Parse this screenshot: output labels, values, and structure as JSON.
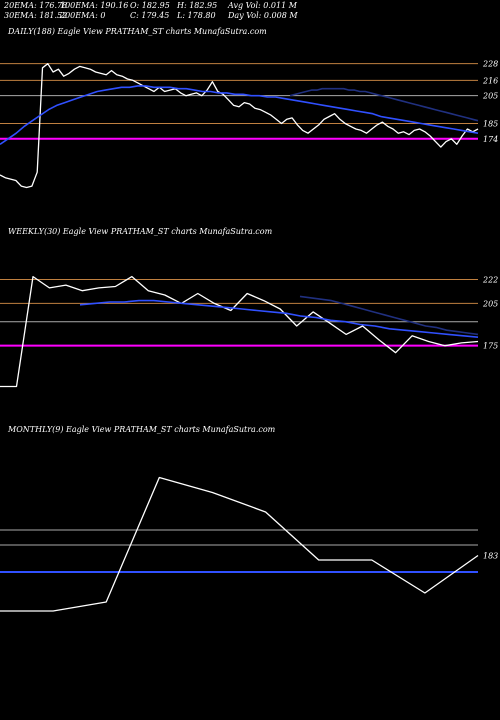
{
  "header": {
    "r1": [
      "20EMA: 176.78",
      "100EMA: 190.16",
      "O: 182.95",
      "H: 182.95",
      "Avg Vol: 0.011 M"
    ],
    "r2": [
      "30EMA: 181.52",
      "200EMA: 0",
      "C: 179.45",
      "L: 178.80",
      "Day Vol: 0.008 M"
    ]
  },
  "captions": {
    "daily": "DAILY(188) Eagle   View  PRATHAM_ST charts MunafaSutra.com",
    "weekly": "WEEKLY(30) Eagle   View  PRATHAM_ST charts MunafaSutra.com",
    "monthly": "MONTHLY(9) Eagle   View  PRATHAM_ST charts MunafaSutra.com"
  },
  "colors": {
    "price": "#ffffff",
    "ema_blue": "#3050ff",
    "ema_dark": "#203080",
    "level_orange": "#c08040",
    "level_gray": "#aaaaaa",
    "current_magenta": "#ff00ff"
  },
  "chart_data": [
    {
      "type": "line",
      "name": "daily",
      "ylim": [
        130,
        245
      ],
      "tick_labels": [
        "228",
        "216",
        "205",
        "185",
        "174"
      ],
      "level_lines": [
        {
          "y": 228,
          "color": "#c08040"
        },
        {
          "y": 216,
          "color": "#c08040"
        },
        {
          "y": 205,
          "color": "#aaaaaa"
        },
        {
          "y": 185,
          "color": "#c08040"
        },
        {
          "y": 174,
          "color": "#ff00ff"
        }
      ],
      "series": [
        {
          "role": "price",
          "color": "#ffffff",
          "values": [
            148,
            146,
            145,
            144,
            140,
            139,
            140,
            150,
            225,
            228,
            222,
            224,
            219,
            221,
            224,
            226,
            225,
            224,
            222,
            221,
            220,
            223,
            220,
            219,
            217,
            216,
            214,
            212,
            210,
            208,
            211,
            208,
            209,
            210,
            207,
            205,
            206,
            207,
            205,
            209,
            215,
            208,
            206,
            202,
            198,
            197,
            200,
            199,
            196,
            195,
            193,
            191,
            188,
            185,
            188,
            189,
            184,
            180,
            178,
            181,
            184,
            188,
            190,
            192,
            188,
            185,
            183,
            181,
            180,
            178,
            181,
            184,
            186,
            183,
            181,
            178,
            179,
            177,
            180,
            181,
            179,
            176,
            172,
            168,
            172,
            174,
            170,
            176,
            181,
            179,
            181
          ]
        },
        {
          "role": "ema",
          "color": "#3050ff",
          "values": [
            170,
            174,
            178,
            183,
            187,
            191,
            195,
            198,
            200,
            202,
            204,
            206,
            208,
            209,
            210,
            211,
            211,
            212,
            212,
            211,
            211,
            211,
            210,
            210,
            209,
            208,
            208,
            207,
            207,
            206,
            206,
            205,
            205,
            204,
            204,
            203,
            202,
            201,
            200,
            199,
            198,
            197,
            196,
            195,
            194,
            193,
            192,
            190,
            189,
            188,
            187,
            186,
            185,
            184,
            183,
            182,
            181,
            180,
            179,
            178
          ]
        },
        {
          "role": "ema",
          "color": "#203080",
          "values": [
            205,
            206,
            207,
            208,
            209,
            209,
            210,
            210,
            210,
            210,
            210,
            209,
            209,
            208,
            208,
            207,
            206,
            205,
            204,
            203,
            202,
            201,
            200,
            199,
            198,
            197,
            196,
            195,
            194,
            193,
            192,
            191,
            190,
            189,
            188,
            187
          ]
        }
      ]
    },
    {
      "type": "line",
      "name": "weekly",
      "ylim": [
        140,
        250
      ],
      "tick_labels": [
        "222",
        "205",
        "175"
      ],
      "level_lines": [
        {
          "y": 222,
          "color": "#c08040"
        },
        {
          "y": 205,
          "color": "#c08040"
        },
        {
          "y": 192,
          "color": "#aaaaaa"
        },
        {
          "y": 175,
          "color": "#ff00ff"
        }
      ],
      "series": [
        {
          "role": "price",
          "color": "#ffffff",
          "values": [
            146,
            146,
            224,
            216,
            218,
            214,
            216,
            217,
            224,
            214,
            211,
            205,
            212,
            205,
            200,
            212,
            207,
            201,
            189,
            199,
            191,
            183,
            189,
            179,
            170,
            182,
            178,
            175,
            177,
            178
          ]
        },
        {
          "role": "ema",
          "color": "#3050ff",
          "values": [
            204,
            205,
            206,
            206,
            207,
            207,
            206,
            205,
            204,
            203,
            202,
            201,
            200,
            199,
            198,
            196,
            195,
            193,
            192,
            190,
            189,
            187,
            186,
            185,
            184,
            183,
            182,
            181
          ]
        },
        {
          "role": "ema",
          "color": "#203080",
          "values": [
            210,
            209,
            208,
            207,
            205,
            203,
            201,
            199,
            197,
            195,
            193,
            191,
            189,
            188,
            186,
            185,
            184,
            183
          ]
        }
      ]
    },
    {
      "type": "line",
      "name": "monthly",
      "ylim": [
        140,
        260
      ],
      "tick_labels": [
        "183"
      ],
      "level_lines": [
        {
          "y": 200,
          "color": "#aaaaaa"
        },
        {
          "y": 190,
          "color": "#aaaaaa"
        },
        {
          "y": 172,
          "color": "#3050ff"
        }
      ],
      "series": [
        {
          "role": "price",
          "color": "#ffffff",
          "values": [
            146,
            146,
            152,
            235,
            225,
            212,
            180,
            180,
            158,
            183
          ]
        }
      ]
    }
  ]
}
